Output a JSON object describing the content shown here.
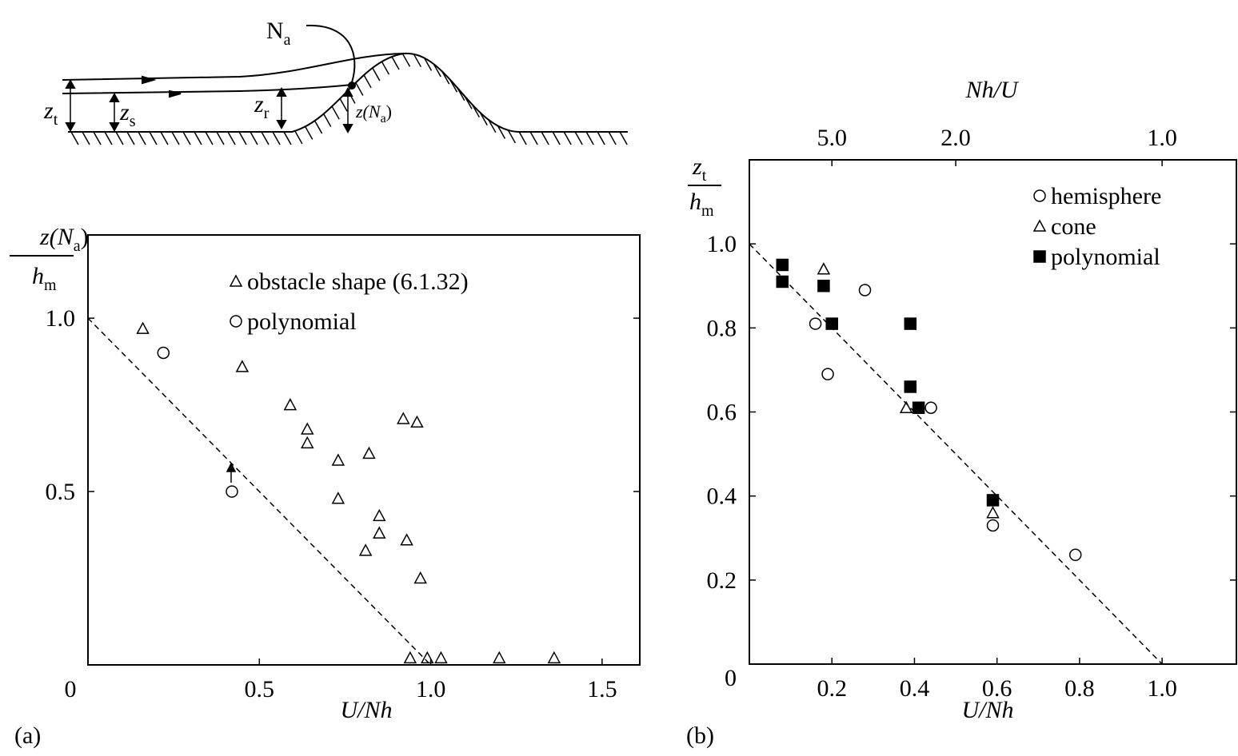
{
  "diagram": {
    "labels": [
      {
        "base": "N",
        "sub": "a"
      },
      {
        "base": "z",
        "sub": "t"
      },
      {
        "base": "z",
        "sub": "s"
      },
      {
        "base": "z",
        "sub": "r"
      },
      {
        "base": "z(N",
        "sub": "a",
        "tail": ")"
      }
    ]
  },
  "chart_data": [
    {
      "type": "scatter",
      "panel_label": "(a)",
      "x_label": "U/Nh",
      "y_label": {
        "numerator": {
          "base": "z(N",
          "sub": "a",
          "tail": ")"
        },
        "denominator": {
          "base": "h",
          "sub": "m"
        }
      },
      "xlim": [
        0,
        1.61
      ],
      "ylim": [
        0,
        1.24
      ],
      "xticks": [
        0,
        0.5,
        {
          "value": 1,
          "label": "1.0"
        },
        1.5
      ],
      "yticks": [
        0.5,
        {
          "value": 1,
          "label": "1.0"
        }
      ],
      "reference_line": {
        "x": [
          0,
          1
        ],
        "y": [
          1,
          0
        ],
        "line_style": "dashed"
      },
      "series": [
        {
          "name": "obstacle shape (6.1.32)",
          "marker": "triangle",
          "filled": false,
          "color": "#000000",
          "x": [
            0.16,
            0.45,
            0.59,
            0.64,
            0.64,
            0.73,
            0.82,
            0.92,
            0.96,
            0.73,
            0.85,
            0.85,
            0.81,
            0.93,
            0.97,
            0.94,
            0.99,
            1.03,
            1.2,
            1.36
          ],
          "values": [
            0.97,
            0.86,
            0.75,
            0.68,
            0.64,
            0.59,
            0.61,
            0.71,
            0.7,
            0.48,
            0.43,
            0.38,
            0.33,
            0.36,
            0.25,
            0.02,
            0.02,
            0.02,
            0.02,
            0.02
          ]
        },
        {
          "name": "polynomial",
          "marker": "circle",
          "filled": false,
          "color": "#000000",
          "x": [
            0.22,
            0.42
          ],
          "values": [
            0.9,
            0.5
          ]
        }
      ]
    },
    {
      "type": "scatter",
      "panel_label": "(b)",
      "x_label": "U/Nh",
      "x2_label": "Nh/U",
      "y_label": {
        "numerator": {
          "base": "z",
          "sub": "t"
        },
        "denominator": {
          "base": "h",
          "sub": "m"
        }
      },
      "xlim": [
        0,
        1.18
      ],
      "ylim": [
        0,
        1.2
      ],
      "xticks": [
        0.2,
        0.4,
        0.6,
        0.8,
        {
          "value": 1,
          "label": "1.0"
        }
      ],
      "yticks": [
        0,
        0.2,
        0.4,
        0.6,
        0.8,
        {
          "value": 1,
          "label": "1.0"
        }
      ],
      "x2ticks": [
        {
          "value": 5,
          "label": "5.0"
        },
        {
          "value": 2,
          "label": "2.0"
        },
        {
          "value": 1,
          "label": "1.0"
        }
      ],
      "reference_line": {
        "x": [
          0,
          1
        ],
        "y": [
          1,
          0
        ],
        "line_style": "dashed"
      },
      "series": [
        {
          "name": "hemisphere",
          "marker": "circle",
          "filled": false,
          "color": "#000000",
          "x": [
            0.16,
            0.19,
            0.28,
            0.44,
            0.59,
            0.79
          ],
          "values": [
            0.81,
            0.69,
            0.89,
            0.61,
            0.33,
            0.26
          ]
        },
        {
          "name": "cone",
          "marker": "triangle",
          "filled": false,
          "color": "#000000",
          "x": [
            0.18,
            0.38,
            0.59
          ],
          "values": [
            0.94,
            0.61,
            0.36
          ]
        },
        {
          "name": "polynomial",
          "marker": "square",
          "filled": true,
          "color": "#000000",
          "x": [
            0.08,
            0.08,
            0.18,
            0.2,
            0.39,
            0.39,
            0.41,
            0.59
          ],
          "values": [
            0.95,
            0.91,
            0.9,
            0.81,
            0.81,
            0.66,
            0.61,
            0.39
          ]
        }
      ]
    }
  ]
}
